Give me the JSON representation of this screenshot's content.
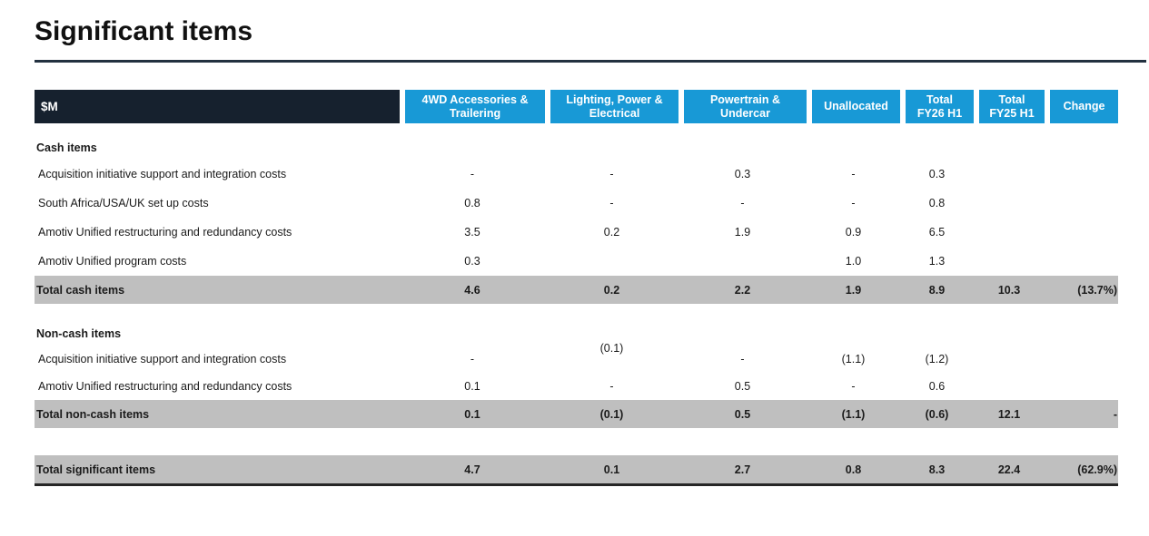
{
  "page": {
    "title": "Significant items"
  },
  "colors": {
    "navy": "#16212E",
    "blue": "#1899D6",
    "band_gray": "#BFBFBF",
    "rule": "#233140"
  },
  "table": {
    "unit_label": "$M",
    "column_headers": [
      {
        "lines": [
          "4WD Accessories &",
          "Trailering"
        ]
      },
      {
        "lines": [
          "Lighting, Power &",
          "Electrical"
        ]
      },
      {
        "lines": [
          "Powertrain &",
          "Undercar"
        ]
      },
      {
        "lines": [
          "Unallocated"
        ]
      },
      {
        "lines": [
          "Total",
          "FY26 H1"
        ]
      },
      {
        "lines": [
          "Total",
          "FY25 H1"
        ]
      },
      {
        "lines": [
          "Change"
        ]
      }
    ],
    "sections": [
      {
        "heading": "Cash items",
        "rows": [
          {
            "label": "Acquisition initiative support and integration costs",
            "values": [
              "-",
              "-",
              "0.3",
              "-",
              "0.3",
              "",
              ""
            ]
          },
          {
            "label": "South Africa/USA/UK set up costs",
            "values": [
              "0.8",
              "-",
              "-",
              "-",
              "0.8",
              "",
              ""
            ]
          },
          {
            "label": "Amotiv Unified restructuring and redundancy costs",
            "values": [
              "3.5",
              "0.2",
              "1.9",
              "0.9",
              "6.5",
              "",
              ""
            ]
          },
          {
            "label": "Amotiv Unified program costs",
            "values": [
              "0.3",
              "",
              "",
              "1.0",
              "1.3",
              "",
              ""
            ]
          }
        ],
        "total": {
          "label": "Total cash items",
          "values": [
            "4.6",
            "0.2",
            "2.2",
            "1.9",
            "8.9",
            "10.3",
            "(13.7%)"
          ]
        }
      },
      {
        "heading": "Non-cash items",
        "rows": [
          {
            "label": "Acquisition initiative support and integration costs",
            "values": [
              "-",
              "(0.1)",
              "-",
              "(1.1)",
              "(1.2)",
              "",
              ""
            ]
          },
          {
            "label": "Amotiv Unified restructuring and redundancy costs",
            "values": [
              "0.1",
              "-",
              "0.5",
              "-",
              "0.6",
              "",
              ""
            ]
          }
        ],
        "total": {
          "label": "Total non-cash items",
          "values": [
            "0.1",
            "(0.1)",
            "0.5",
            "(1.1)",
            "(0.6)",
            "12.1",
            "-"
          ]
        }
      }
    ],
    "grand_total": {
      "label": "Total significant items",
      "values": [
        "4.7",
        "0.1",
        "2.7",
        "0.8",
        "8.3",
        "22.4",
        "(62.9%)"
      ]
    }
  }
}
